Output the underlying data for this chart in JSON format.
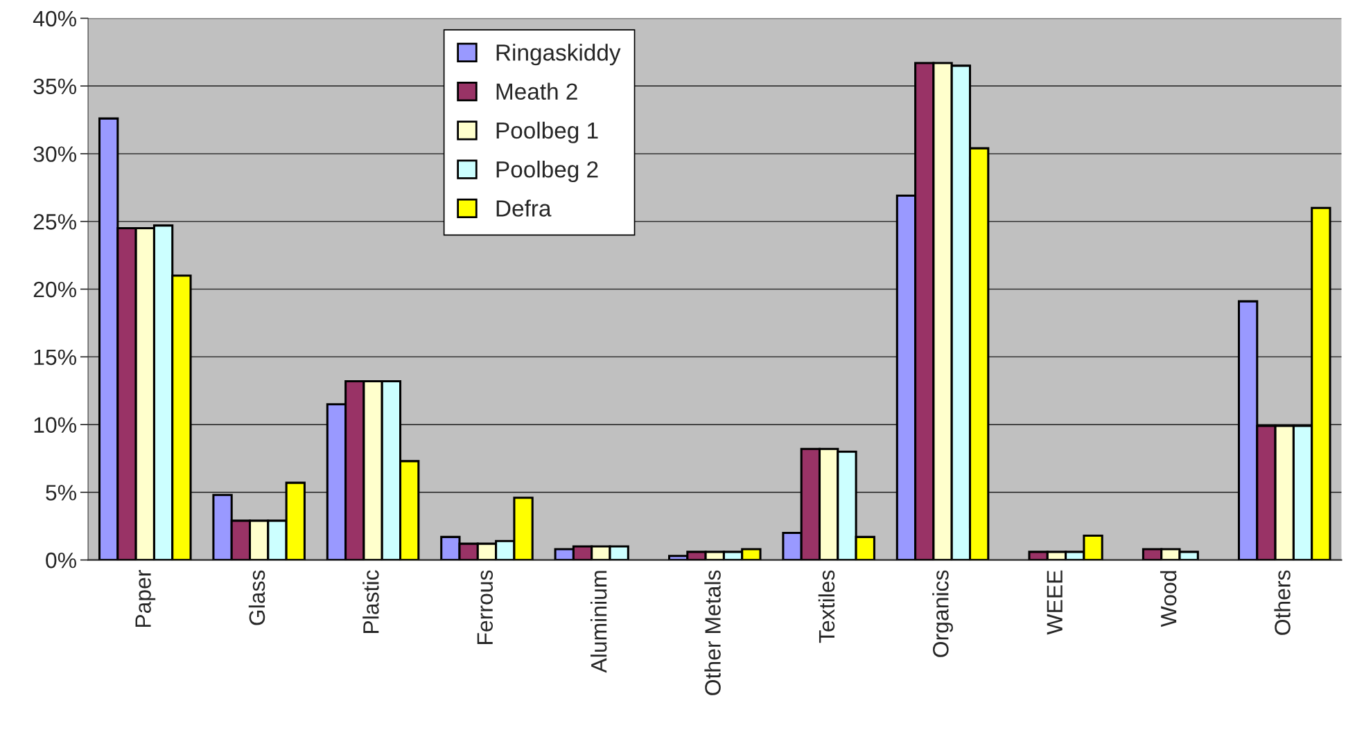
{
  "chart_data": {
    "type": "bar",
    "categories": [
      "Paper",
      "Glass",
      "Plastic",
      "Ferrous",
      "Aluminium",
      "Other Metals",
      "Textiles",
      "Organics",
      "WEEE",
      "Wood",
      "Others"
    ],
    "series": [
      {
        "name": "Ringaskiddy",
        "color": "#9999ff",
        "values": [
          32.6,
          4.8,
          11.5,
          1.7,
          0.8,
          0.3,
          2.0,
          26.9,
          null,
          null,
          19.1
        ]
      },
      {
        "name": "Meath 2",
        "color": "#993366",
        "values": [
          24.5,
          2.9,
          13.2,
          1.2,
          1.0,
          0.6,
          8.2,
          36.7,
          0.6,
          0.8,
          9.9
        ]
      },
      {
        "name": "Poolbeg 1",
        "color": "#ffffcc",
        "values": [
          24.5,
          2.9,
          13.2,
          1.2,
          1.0,
          0.6,
          8.2,
          36.7,
          0.6,
          0.8,
          9.9
        ]
      },
      {
        "name": "Poolbeg 2",
        "color": "#ccffff",
        "values": [
          24.7,
          2.9,
          13.2,
          1.4,
          1.0,
          0.6,
          8.0,
          36.5,
          0.6,
          0.6,
          9.9
        ]
      },
      {
        "name": "Defra",
        "color": "#ffff00",
        "values": [
          21.0,
          5.7,
          7.3,
          4.6,
          null,
          0.8,
          1.7,
          30.4,
          1.8,
          null,
          26.0
        ]
      }
    ],
    "ylim": [
      0,
      40
    ],
    "yticks": [
      {
        "value": 0,
        "label": "0%"
      },
      {
        "value": 5,
        "label": "5%"
      },
      {
        "value": 10,
        "label": "10%"
      },
      {
        "value": 15,
        "label": "15%"
      },
      {
        "value": 20,
        "label": "20%"
      },
      {
        "value": 25,
        "label": "25%"
      },
      {
        "value": 30,
        "label": "30%"
      },
      {
        "value": 35,
        "label": "35%"
      },
      {
        "value": 40,
        "label": "40%"
      }
    ],
    "grid": "y",
    "legend": "top"
  }
}
